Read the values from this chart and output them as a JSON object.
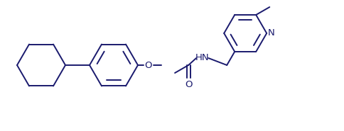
{
  "bg_color": "#ffffff",
  "line_color": "#1a1a6e",
  "line_width": 1.4,
  "figsize": [
    4.85,
    1.85
  ],
  "dpi": 100,
  "xlim": [
    0,
    485
  ],
  "ylim": [
    0,
    185
  ]
}
